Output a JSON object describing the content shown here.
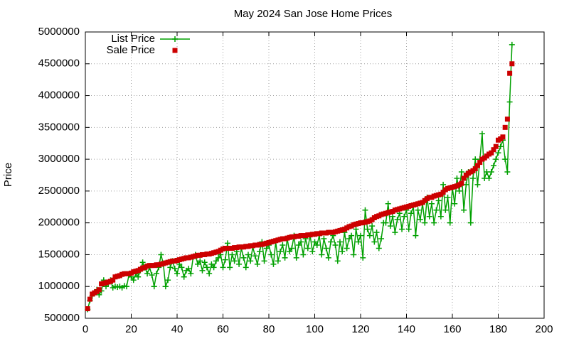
{
  "chart_data": {
    "type": "line",
    "title": "May 2024 San Jose Home Prices",
    "ylabel": "Price",
    "x": [
      1,
      2,
      3,
      4,
      5,
      6,
      7,
      8,
      9,
      10,
      11,
      12,
      13,
      14,
      15,
      16,
      17,
      18,
      19,
      20,
      21,
      22,
      23,
      24,
      25,
      26,
      27,
      28,
      29,
      30,
      31,
      32,
      33,
      34,
      35,
      36,
      37,
      38,
      39,
      40,
      41,
      42,
      43,
      44,
      45,
      46,
      47,
      48,
      49,
      50,
      51,
      52,
      53,
      54,
      55,
      56,
      57,
      58,
      59,
      60,
      61,
      62,
      63,
      64,
      65,
      66,
      67,
      68,
      69,
      70,
      71,
      72,
      73,
      74,
      75,
      76,
      77,
      78,
      79,
      80,
      81,
      82,
      83,
      84,
      85,
      86,
      87,
      88,
      89,
      90,
      91,
      92,
      93,
      94,
      95,
      96,
      97,
      98,
      99,
      100,
      101,
      102,
      103,
      104,
      105,
      106,
      107,
      108,
      109,
      110,
      111,
      112,
      113,
      114,
      115,
      116,
      117,
      118,
      119,
      120,
      121,
      122,
      123,
      124,
      125,
      126,
      127,
      128,
      129,
      130,
      131,
      132,
      133,
      134,
      135,
      136,
      137,
      138,
      139,
      140,
      141,
      142,
      143,
      144,
      145,
      146,
      147,
      148,
      149,
      150,
      151,
      152,
      153,
      154,
      155,
      156,
      157,
      158,
      159,
      160,
      161,
      162,
      163,
      164,
      165,
      166,
      167,
      168,
      169,
      170,
      171,
      172,
      173,
      174,
      175,
      176,
      177,
      178,
      179,
      180,
      181,
      182,
      183,
      184,
      185,
      186
    ],
    "series": [
      {
        "name": "List Price",
        "color": "#00a000",
        "marker": "plus",
        "values": [
          640000,
          780000,
          850000,
          900000,
          950000,
          870000,
          930000,
          1100000,
          1000000,
          1050000,
          1100000,
          980000,
          1000000,
          990000,
          1000000,
          980000,
          1010000,
          1000000,
          1180000,
          1150000,
          1100000,
          1200000,
          1150000,
          1250000,
          1380000,
          1300000,
          1200000,
          1300000,
          1180000,
          1000000,
          1200000,
          1300000,
          1500000,
          1350000,
          1000000,
          1100000,
          1300000,
          1400000,
          1280000,
          1200000,
          1350000,
          1300000,
          1150000,
          1250000,
          1280000,
          1200000,
          1460000,
          1500000,
          1350000,
          1400000,
          1250000,
          1380000,
          1300000,
          1200000,
          1350000,
          1300000,
          1400000,
          1450000,
          1500000,
          1300000,
          1420000,
          1680000,
          1300000,
          1500000,
          1400000,
          1550000,
          1350000,
          1600000,
          1450000,
          1300000,
          1500000,
          1400000,
          1620000,
          1480000,
          1350000,
          1550000,
          1700000,
          1400000,
          1600000,
          1650000,
          1500000,
          1350000,
          1700000,
          1400000,
          1550000,
          1650000,
          1450000,
          1750000,
          1550000,
          1600000,
          1800000,
          1450000,
          1650000,
          1700000,
          1500000,
          1750000,
          1600000,
          1800000,
          1550000,
          1700000,
          1650000,
          1800000,
          1500000,
          1750000,
          1600000,
          1450000,
          1700000,
          1800000,
          1650000,
          1400000,
          1700000,
          1550000,
          1850000,
          1600000,
          1750000,
          1800000,
          1500000,
          1900000,
          1700000,
          1800000,
          1450000,
          2200000,
          1900000,
          1800000,
          1950000,
          1700000,
          1850000,
          1600000,
          1750000,
          2000000,
          2000000,
          2300000,
          1950000,
          2100000,
          1850000,
          2050000,
          2150000,
          1900000,
          2100000,
          2200000,
          1900000,
          2150000,
          2250000,
          1800000,
          2200000,
          2050000,
          2300000,
          2000000,
          2400000,
          2100000,
          2300000,
          2000000,
          2200000,
          2350000,
          2100000,
          2600000,
          2200000,
          2400000,
          2000000,
          2550000,
          2300000,
          2700000,
          2500000,
          2800000,
          2200000,
          2600000,
          2800000,
          2000000,
          2700000,
          3000000,
          2600000,
          3000000,
          3400000,
          2700000,
          2800000,
          2700000,
          2800000,
          2900000,
          3000000,
          3100000,
          3200000,
          3300000,
          3000000,
          2800000,
          3900000,
          4800000
        ]
      },
      {
        "name": "Sale Price",
        "color": "#cc0000",
        "marker": "square",
        "values": [
          650000,
          800000,
          880000,
          900000,
          920000,
          950000,
          1040000,
          1050000,
          1060000,
          1070000,
          1080000,
          1100000,
          1150000,
          1160000,
          1170000,
          1190000,
          1200000,
          1200000,
          1200000,
          1210000,
          1230000,
          1240000,
          1250000,
          1270000,
          1290000,
          1300000,
          1320000,
          1330000,
          1330000,
          1330000,
          1340000,
          1340000,
          1350000,
          1360000,
          1370000,
          1380000,
          1390000,
          1400000,
          1400000,
          1410000,
          1420000,
          1430000,
          1440000,
          1450000,
          1450000,
          1460000,
          1470000,
          1480000,
          1490000,
          1490000,
          1500000,
          1500000,
          1510000,
          1510000,
          1520000,
          1530000,
          1540000,
          1550000,
          1570000,
          1590000,
          1600000,
          1600000,
          1600000,
          1600000,
          1610000,
          1610000,
          1620000,
          1620000,
          1620000,
          1630000,
          1630000,
          1640000,
          1640000,
          1650000,
          1650000,
          1660000,
          1660000,
          1670000,
          1680000,
          1690000,
          1700000,
          1710000,
          1720000,
          1730000,
          1740000,
          1750000,
          1750000,
          1760000,
          1770000,
          1780000,
          1780000,
          1790000,
          1790000,
          1800000,
          1800000,
          1800000,
          1810000,
          1810000,
          1820000,
          1820000,
          1830000,
          1830000,
          1840000,
          1840000,
          1840000,
          1850000,
          1850000,
          1850000,
          1860000,
          1870000,
          1880000,
          1890000,
          1900000,
          1920000,
          1940000,
          1950000,
          1970000,
          1980000,
          1990000,
          2000000,
          2000000,
          2010000,
          2020000,
          2030000,
          2050000,
          2080000,
          2100000,
          2110000,
          2130000,
          2140000,
          2150000,
          2160000,
          2170000,
          2180000,
          2200000,
          2210000,
          2220000,
          2230000,
          2240000,
          2250000,
          2260000,
          2270000,
          2280000,
          2290000,
          2300000,
          2310000,
          2320000,
          2350000,
          2380000,
          2400000,
          2400000,
          2420000,
          2430000,
          2440000,
          2450000,
          2480000,
          2520000,
          2540000,
          2550000,
          2560000,
          2570000,
          2580000,
          2600000,
          2620000,
          2700000,
          2750000,
          2780000,
          2800000,
          2820000,
          2850000,
          2900000,
          2950000,
          3000000,
          3020000,
          3050000,
          3080000,
          3100000,
          3150000,
          3200000,
          3300000,
          3320000,
          3350000,
          3500000,
          3630000,
          4350000,
          4500000
        ]
      }
    ],
    "xlim": [
      0,
      200
    ],
    "xticks": [
      0,
      20,
      40,
      60,
      80,
      100,
      120,
      140,
      160,
      180,
      200
    ],
    "ylim": [
      500000,
      5000000
    ],
    "yticks": [
      500000,
      1000000,
      1500000,
      2000000,
      2500000,
      3000000,
      3500000,
      4000000,
      4500000,
      5000000
    ],
    "grid": true,
    "legend": "top-left"
  }
}
